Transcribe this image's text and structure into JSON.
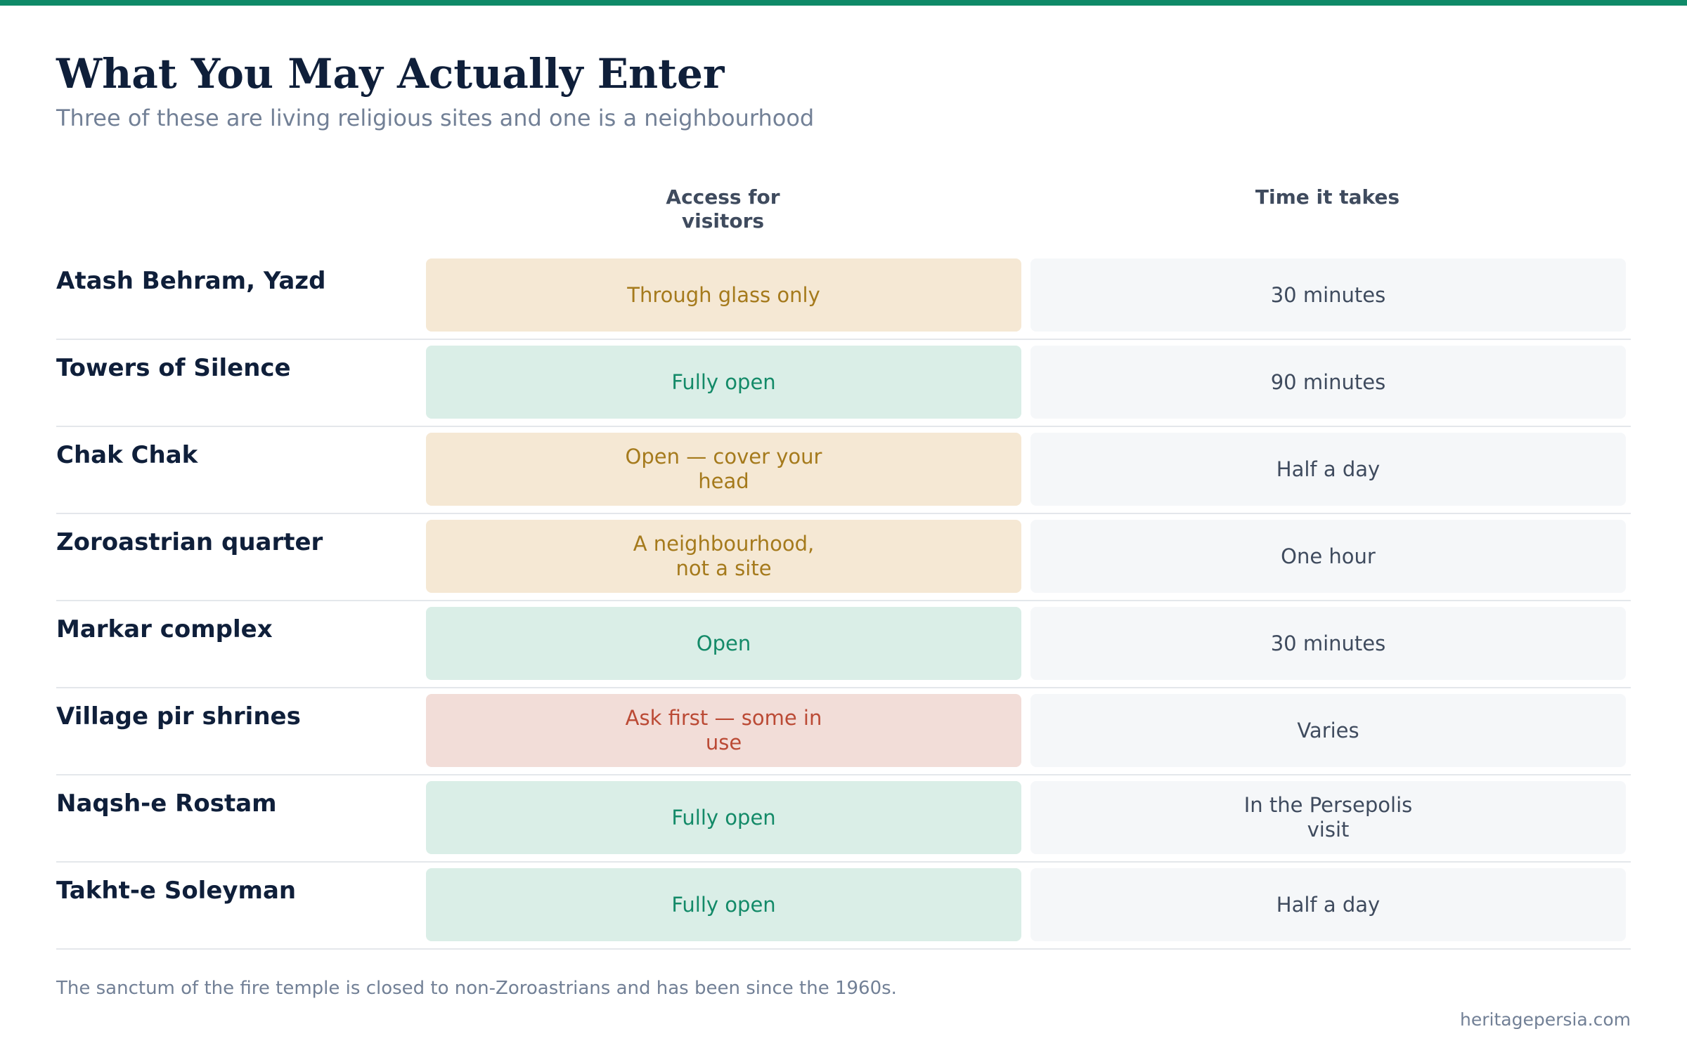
{
  "header": {
    "title": "What You May Actually Enter",
    "subtitle": "Three of these are living religious sites and one is a neighbourhood"
  },
  "columns": {
    "access": "Access for visitors",
    "time": "Time it takes"
  },
  "colors": {
    "accent": "#0f8a68",
    "amber_bg": "#f5e8d4",
    "amber_text": "#a57a1c",
    "green_bg": "#daeee7",
    "green_text": "#138a68",
    "red_bg": "#f2ddd8",
    "red_text": "#bb4a35"
  },
  "rows": [
    {
      "site": "Atash Behram, Yazd",
      "access": "Through glass only",
      "access_tone": "amber",
      "time": "30 minutes"
    },
    {
      "site": "Towers of Silence",
      "access": "Fully open",
      "access_tone": "green",
      "time": "90 minutes"
    },
    {
      "site": "Chak Chak",
      "access": "Open — cover your head",
      "access_tone": "amber",
      "time": "Half a day"
    },
    {
      "site": "Zoroastrian quarter",
      "access": "A neighbourhood, not a site",
      "access_tone": "amber",
      "time": "One hour"
    },
    {
      "site": "Markar complex",
      "access": "Open",
      "access_tone": "green",
      "time": "30 minutes"
    },
    {
      "site": "Village pir shrines",
      "access": "Ask first — some in use",
      "access_tone": "red",
      "time": "Varies"
    },
    {
      "site": "Naqsh-e Rostam",
      "access": "Fully open",
      "access_tone": "green",
      "time": "In the Persepolis visit"
    },
    {
      "site": "Takht-e Soleyman",
      "access": "Fully open",
      "access_tone": "green",
      "time": "Half a day"
    }
  ],
  "footer": {
    "note": "The sanctum of the fire temple is closed to non-Zoroastrians and has been since the 1960s.",
    "source": "heritagepersia.com"
  }
}
